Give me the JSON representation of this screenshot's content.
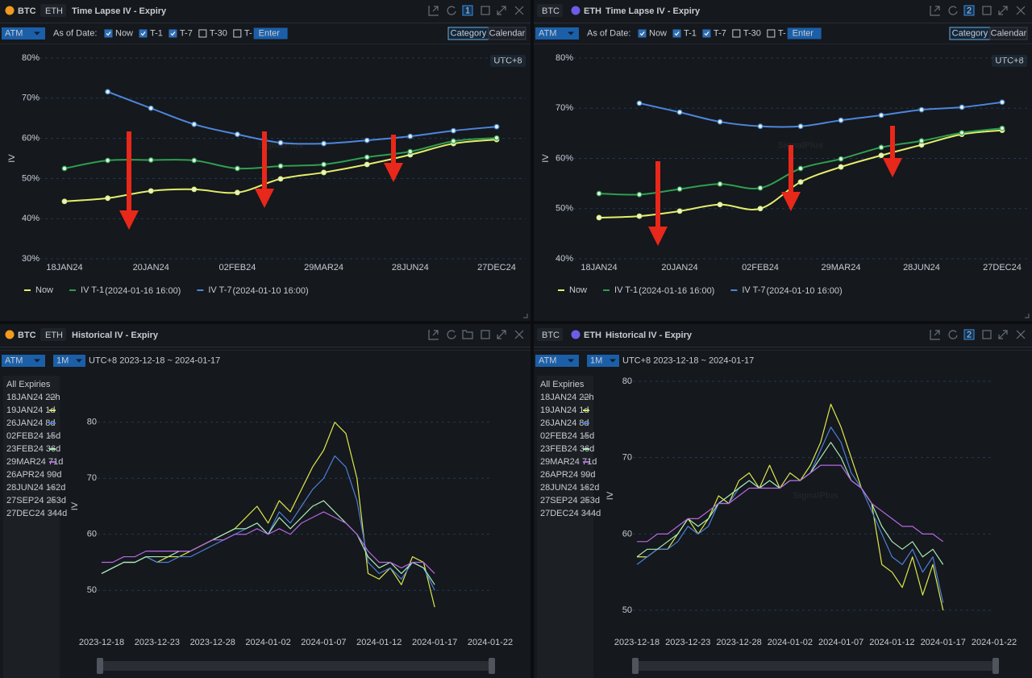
{
  "watermark": "SignalPlus",
  "panels": [
    {
      "tabs": [
        "BTC",
        "ETH"
      ],
      "active": 0,
      "title": "Time Lapse IV - Expiry",
      "badge": "1",
      "measure": "ATM",
      "as_of": "As of Date:",
      "options": [
        {
          "label": "Now",
          "checked": true
        },
        {
          "label": "T-1",
          "checked": true
        },
        {
          "label": "T-7",
          "checked": true
        },
        {
          "label": "T-30",
          "checked": false
        },
        {
          "label": "T-",
          "checked": false
        }
      ],
      "input": "Enter",
      "views": [
        "Category",
        "Calendar"
      ],
      "active_view": 0,
      "timezone": "UTC+8"
    },
    {
      "tabs": [
        "BTC",
        "ETH"
      ],
      "active": 1,
      "title": "Time Lapse IV - Expiry",
      "badge": "2",
      "measure": "ATM",
      "as_of": "As of Date:",
      "options": [
        {
          "label": "Now",
          "checked": true
        },
        {
          "label": "T-1",
          "checked": true
        },
        {
          "label": "T-7",
          "checked": true
        },
        {
          "label": "T-30",
          "checked": false
        },
        {
          "label": "T-",
          "checked": false
        }
      ],
      "input": "Enter",
      "views": [
        "Category",
        "Calendar"
      ],
      "active_view": 0,
      "timezone": "UTC+8"
    },
    {
      "tabs": [
        "BTC",
        "ETH"
      ],
      "active": 0,
      "title": "Historical IV - Expiry",
      "measure": "ATM",
      "period": "1M",
      "range": "UTC+8 2023-12-18 ~ 2024-01-17",
      "expiries_heading": "All Expiries",
      "expiries": [
        {
          "label": "18JAN24 22h",
          "color": "#6b7079"
        },
        {
          "label": "19JAN24 1d",
          "color": "#dde84c"
        },
        {
          "label": "26JAN24 8d",
          "color": "#4a7fd8"
        },
        {
          "label": "02FEB24 15d",
          "color": "#6b7079"
        },
        {
          "label": "23FEB24 36d",
          "color": "#a8ecb4"
        },
        {
          "label": "29MAR24 71d",
          "color": "#b768e4"
        },
        {
          "label": "26APR24 99d",
          "color": "#6b7079"
        },
        {
          "label": "28JUN24 162d",
          "color": "#6b7079"
        },
        {
          "label": "27SEP24 253d",
          "color": "#6b7079"
        },
        {
          "label": "27DEC24 344d",
          "color": "#6b7079"
        }
      ]
    },
    {
      "tabs": [
        "BTC",
        "ETH"
      ],
      "active": 1,
      "title": "Historical IV - Expiry",
      "badge": "2",
      "measure": "ATM",
      "period": "1M",
      "range": "UTC+8 2023-12-18 ~ 2024-01-17",
      "expiries_heading": "All Expiries",
      "expiries": [
        {
          "label": "18JAN24 22h",
          "color": "#6b7079"
        },
        {
          "label": "19JAN24 1d",
          "color": "#dde84c"
        },
        {
          "label": "26JAN24 8d",
          "color": "#4a7fd8"
        },
        {
          "label": "02FEB24 15d",
          "color": "#6b7079"
        },
        {
          "label": "23FEB24 36d",
          "color": "#a8ecb4"
        },
        {
          "label": "29MAR24 71d",
          "color": "#b768e4"
        },
        {
          "label": "26APR24 99d",
          "color": "#6b7079"
        },
        {
          "label": "28JUN24 162d",
          "color": "#6b7079"
        },
        {
          "label": "27SEP24 253d",
          "color": "#6b7079"
        },
        {
          "label": "27DEC24 344d",
          "color": "#6b7079"
        }
      ]
    }
  ],
  "chart_data": [
    {
      "type": "line",
      "ylabel": "IV",
      "smooth": true,
      "markers": true,
      "grid": true,
      "categories": [
        "18JAN24",
        null,
        "20JAN24",
        null,
        "02FEB24",
        null,
        "29MAR24",
        null,
        "28JUN24",
        null,
        "27DEC24"
      ],
      "ylim": [
        30,
        80
      ],
      "yticks": [
        {
          "value": 30,
          "label": "30%"
        },
        {
          "value": 40,
          "label": "40%"
        },
        {
          "value": 50,
          "label": "50%"
        },
        {
          "value": 60,
          "label": "60%"
        },
        {
          "value": 70,
          "label": "70%"
        },
        {
          "value": 80,
          "label": "80%"
        }
      ],
      "series": [
        {
          "name": "Now",
          "color": "#e3ee6a",
          "values": [
            44.3,
            45.1,
            46.9,
            47.3,
            46.5,
            49.9,
            51.5,
            53.5,
            55.9,
            58.7,
            59.7
          ]
        },
        {
          "name": "IV T-1",
          "timestamp": "(2024-01-16 16:00)",
          "color": "#2f9e4f",
          "values": [
            52.5,
            54.5,
            54.6,
            54.5,
            52.5,
            53.1,
            53.5,
            55.3,
            56.7,
            59.3,
            60.1
          ]
        },
        {
          "name": "IV T-7",
          "timestamp": "(2024-01-10 16:00)",
          "color": "#4d86db",
          "values": [
            null,
            71.6,
            67.5,
            63.5,
            61,
            58.9,
            58.7,
            59.5,
            60.5,
            61.9,
            62.9
          ]
        }
      ]
    },
    {
      "type": "line",
      "ylabel": "IV",
      "smooth": true,
      "markers": true,
      "grid": true,
      "categories": [
        "18JAN24",
        null,
        "20JAN24",
        null,
        "02FEB24",
        null,
        "29MAR24",
        null,
        "28JUN24",
        null,
        "27DEC24"
      ],
      "ylim": [
        40,
        80
      ],
      "yticks": [
        {
          "value": 40,
          "label": "40%"
        },
        {
          "value": 50,
          "label": "50%"
        },
        {
          "value": 60,
          "label": "60%"
        },
        {
          "value": 70,
          "label": "70%"
        },
        {
          "value": 80,
          "label": "80%"
        }
      ],
      "series": [
        {
          "name": "Now",
          "color": "#e3ee6a",
          "values": [
            48.2,
            48.5,
            49.5,
            50.8,
            50,
            55.3,
            58.3,
            60.6,
            62.7,
            64.8,
            65.6
          ]
        },
        {
          "name": "IV T-1",
          "timestamp": "(2024-01-16 16:00)",
          "color": "#2f9e4f",
          "values": [
            53,
            52.8,
            53.9,
            54.9,
            54.1,
            58,
            59.9,
            62.2,
            63.5,
            65.1,
            66
          ]
        },
        {
          "name": "IV T-7",
          "timestamp": "(2024-01-10 16:00)",
          "color": "#4d86db",
          "values": [
            null,
            71,
            69.2,
            67.3,
            66.4,
            66.4,
            67.6,
            68.6,
            69.7,
            70.2,
            71.2
          ]
        }
      ]
    },
    {
      "type": "line",
      "ylabel": "IV",
      "smooth": false,
      "markers": false,
      "grid": true,
      "x": [
        "2023-12-18",
        "2023-12-19",
        "2023-12-20",
        "2023-12-21",
        "2023-12-22",
        "2023-12-23",
        "2023-12-24",
        "2023-12-25",
        "2023-12-26",
        "2023-12-27",
        "2023-12-28",
        "2023-12-29",
        "2023-12-30",
        "2023-12-31",
        "2024-01-01",
        "2024-01-02",
        "2024-01-03",
        "2024-01-04",
        "2024-01-05",
        "2024-01-06",
        "2024-01-07",
        "2024-01-08",
        "2024-01-09",
        "2024-01-10",
        "2024-01-11",
        "2024-01-12",
        "2024-01-13",
        "2024-01-14",
        "2024-01-15",
        "2024-01-16",
        "2024-01-17"
      ],
      "xlim": [
        "2023-12-18",
        "2024-01-22"
      ],
      "xticks": [
        "2023-12-18",
        "2023-12-23",
        "2023-12-28",
        "2024-01-02",
        "2024-01-07",
        "2024-01-12",
        "2024-01-17",
        "2024-01-22"
      ],
      "ylim": [
        45,
        85
      ],
      "yticks": [
        50,
        60,
        70,
        80
      ],
      "series": [
        {
          "name": "19JAN24",
          "color": "#dde84c",
          "values": [
            53,
            54,
            55,
            55,
            56,
            55,
            56,
            56,
            57,
            58,
            59,
            60,
            61,
            63,
            65,
            62,
            66,
            64,
            68,
            72,
            75,
            80,
            78,
            70,
            53,
            52,
            54,
            51,
            56,
            55,
            47
          ]
        },
        {
          "name": "26JAN24",
          "color": "#4a7fd8",
          "values": [
            53,
            54,
            55,
            55,
            56,
            55,
            55,
            56,
            56,
            57,
            58,
            59,
            60,
            61,
            62,
            60,
            64,
            62,
            65,
            68,
            70,
            74,
            72,
            66,
            55,
            53,
            54,
            52,
            55,
            54,
            50
          ]
        },
        {
          "name": "23FEB24",
          "color": "#a8ecb4",
          "values": [
            53,
            54,
            55,
            55,
            56,
            56,
            56,
            57,
            57,
            58,
            59,
            60,
            61,
            61,
            62,
            60,
            63,
            61,
            63,
            65,
            66,
            64,
            62,
            60,
            56,
            54,
            55,
            53,
            55,
            54,
            51
          ]
        },
        {
          "name": "29MAR24",
          "color": "#b768e4",
          "values": [
            55,
            55,
            56,
            56,
            57,
            57,
            57,
            57,
            57,
            58,
            59,
            59,
            60,
            60,
            61,
            60,
            61,
            60,
            62,
            63,
            64,
            63,
            62,
            60,
            57,
            55,
            55,
            54,
            55,
            55,
            53
          ]
        }
      ]
    },
    {
      "type": "line",
      "ylabel": "IV",
      "smooth": false,
      "markers": false,
      "grid": true,
      "x": [
        "2023-12-18",
        "2023-12-19",
        "2023-12-20",
        "2023-12-21",
        "2023-12-22",
        "2023-12-23",
        "2023-12-24",
        "2023-12-25",
        "2023-12-26",
        "2023-12-27",
        "2023-12-28",
        "2023-12-29",
        "2023-12-30",
        "2023-12-31",
        "2024-01-01",
        "2024-01-02",
        "2024-01-03",
        "2024-01-04",
        "2024-01-05",
        "2024-01-06",
        "2024-01-07",
        "2024-01-08",
        "2024-01-09",
        "2024-01-10",
        "2024-01-11",
        "2024-01-12",
        "2024-01-13",
        "2024-01-14",
        "2024-01-15",
        "2024-01-16",
        "2024-01-17"
      ],
      "xlim": [
        "2023-12-18",
        "2024-01-22"
      ],
      "xticks": [
        "2023-12-18",
        "2023-12-23",
        "2023-12-28",
        "2024-01-02",
        "2024-01-07",
        "2024-01-12",
        "2024-01-17",
        "2024-01-22"
      ],
      "ylim": [
        48,
        82
      ],
      "yticks": [
        50,
        60,
        70,
        80
      ],
      "series": [
        {
          "name": "19JAN24",
          "color": "#dde84c",
          "values": [
            57,
            57,
            58,
            58,
            60,
            62,
            60,
            62,
            65,
            64,
            67,
            68,
            66,
            69,
            66,
            68,
            67,
            69,
            72,
            77,
            74,
            70,
            66,
            64,
            56,
            55,
            53,
            57,
            52,
            56,
            50
          ]
        },
        {
          "name": "26JAN24",
          "color": "#4a7fd8",
          "values": [
            56,
            57,
            58,
            58,
            59,
            61,
            60,
            61,
            64,
            64,
            66,
            67,
            66,
            67,
            66,
            67,
            67,
            68,
            71,
            74,
            72,
            68,
            66,
            63,
            60,
            57,
            56,
            58,
            55,
            57,
            51
          ]
        },
        {
          "name": "23FEB24",
          "color": "#a8ecb4",
          "values": [
            57,
            58,
            58,
            59,
            60,
            62,
            61,
            62,
            64,
            65,
            66,
            67,
            66,
            67,
            66,
            67,
            67,
            68,
            70,
            72,
            70,
            67,
            66,
            64,
            61,
            59,
            58,
            59,
            57,
            58,
            56
          ]
        },
        {
          "name": "29MAR24",
          "color": "#b768e4",
          "values": [
            59,
            59,
            60,
            60,
            61,
            62,
            62,
            63,
            64,
            64,
            65,
            66,
            66,
            66,
            66,
            67,
            67,
            68,
            69,
            69,
            69,
            67,
            66,
            64,
            63,
            62,
            61,
            61,
            60,
            60,
            59
          ]
        }
      ]
    }
  ]
}
